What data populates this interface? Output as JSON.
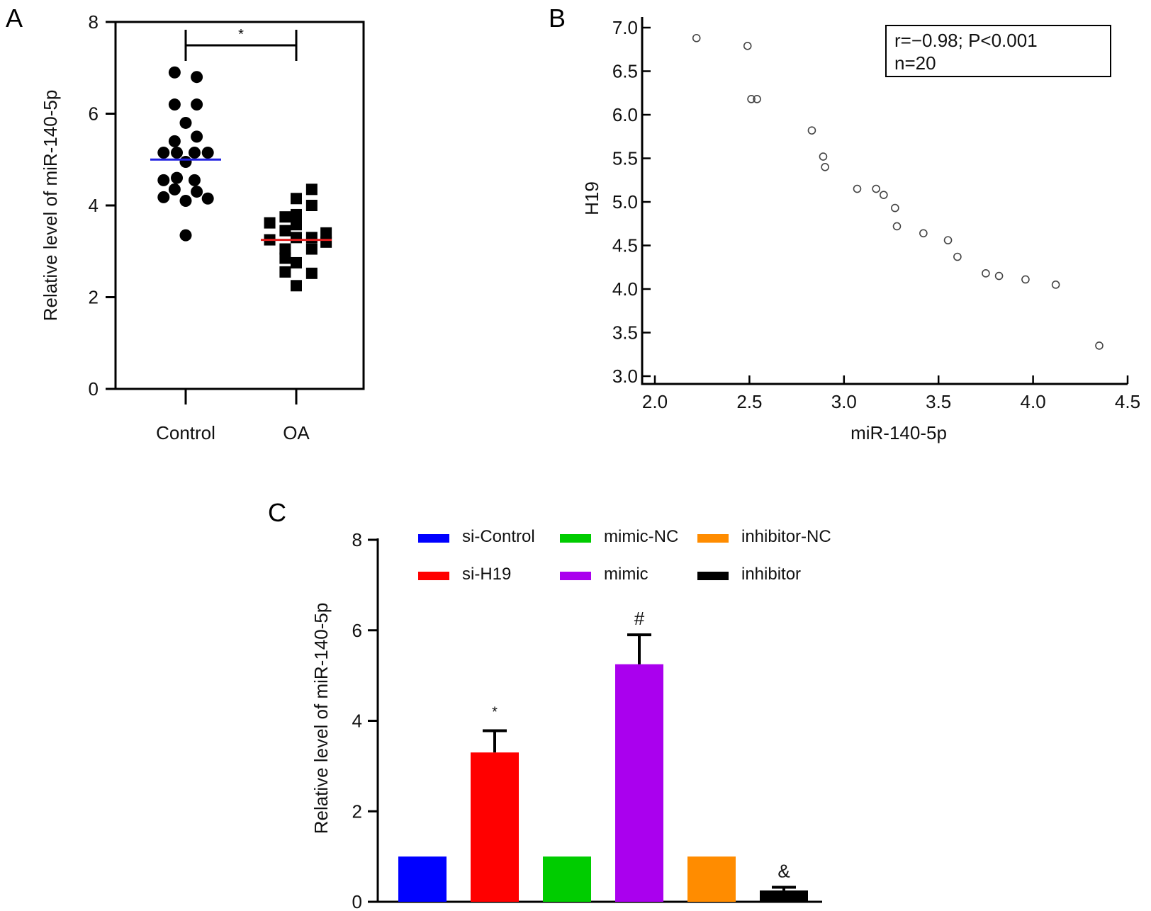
{
  "chart_data": [
    {
      "panel": "A",
      "type": "scatter",
      "ylabel": "Relative level of miR-140-5p",
      "ylim": [
        0,
        8
      ],
      "yticks": [
        0,
        2,
        4,
        6,
        8
      ],
      "categories": [
        "Control",
        "OA"
      ],
      "significance": "*",
      "colors": {
        "control_mean": "#2020e0",
        "oa_mean": "#e02020",
        "points": "#000000"
      },
      "series": [
        {
          "category": "Control",
          "marker": "circle",
          "mean": 5.0,
          "points": [
            {
              "x": 0.9,
              "y": 6.9
            },
            {
              "x": 1.1,
              "y": 6.8
            },
            {
              "x": 0.9,
              "y": 6.2
            },
            {
              "x": 1.1,
              "y": 6.2
            },
            {
              "x": 1.0,
              "y": 5.8
            },
            {
              "x": 0.9,
              "y": 5.4
            },
            {
              "x": 1.1,
              "y": 5.5
            },
            {
              "x": 0.8,
              "y": 5.15
            },
            {
              "x": 0.92,
              "y": 5.15
            },
            {
              "x": 1.08,
              "y": 5.15
            },
            {
              "x": 1.2,
              "y": 5.15
            },
            {
              "x": 1.0,
              "y": 4.95
            },
            {
              "x": 0.8,
              "y": 4.55
            },
            {
              "x": 0.92,
              "y": 4.6
            },
            {
              "x": 1.08,
              "y": 4.55
            },
            {
              "x": 0.9,
              "y": 4.35
            },
            {
              "x": 1.1,
              "y": 4.3
            },
            {
              "x": 0.8,
              "y": 4.18
            },
            {
              "x": 1.0,
              "y": 4.1
            },
            {
              "x": 1.2,
              "y": 4.15
            },
            {
              "x": 1.0,
              "y": 3.35
            }
          ]
        },
        {
          "category": "OA",
          "marker": "square",
          "mean": 3.25,
          "points": [
            {
              "x": 2.14,
              "y": 4.35
            },
            {
              "x": 2.0,
              "y": 4.15
            },
            {
              "x": 2.14,
              "y": 4.0
            },
            {
              "x": 1.9,
              "y": 3.75
            },
            {
              "x": 2.0,
              "y": 3.8
            },
            {
              "x": 1.76,
              "y": 3.62
            },
            {
              "x": 2.0,
              "y": 3.58
            },
            {
              "x": 1.9,
              "y": 3.45
            },
            {
              "x": 2.27,
              "y": 3.4
            },
            {
              "x": 1.76,
              "y": 3.25
            },
            {
              "x": 2.0,
              "y": 3.3
            },
            {
              "x": 2.14,
              "y": 3.3
            },
            {
              "x": 2.27,
              "y": 3.2
            },
            {
              "x": 1.9,
              "y": 3.05
            },
            {
              "x": 2.14,
              "y": 3.05
            },
            {
              "x": 1.9,
              "y": 2.85
            },
            {
              "x": 2.0,
              "y": 2.75
            },
            {
              "x": 1.9,
              "y": 2.55
            },
            {
              "x": 2.14,
              "y": 2.52
            },
            {
              "x": 2.0,
              "y": 2.25
            }
          ]
        }
      ]
    },
    {
      "panel": "B",
      "type": "scatter",
      "xlabel": "miR-140-5p",
      "ylabel": "H19",
      "xlim": [
        2.0,
        4.5
      ],
      "ylim": [
        3.0,
        7.0
      ],
      "xticks": [
        "2.0",
        "2.5",
        "3.0",
        "3.5",
        "4.0",
        "4.5"
      ],
      "yticks": [
        "3.0",
        "3.5",
        "4.0",
        "4.5",
        "5.0",
        "5.5",
        "6.0",
        "6.5",
        "7.0"
      ],
      "annotation": [
        "r=−0.98; P<0.001",
        "n=20"
      ],
      "points": [
        {
          "x": 2.22,
          "y": 6.88
        },
        {
          "x": 2.49,
          "y": 6.79
        },
        {
          "x": 2.51,
          "y": 6.18
        },
        {
          "x": 2.54,
          "y": 6.18
        },
        {
          "x": 2.83,
          "y": 5.82
        },
        {
          "x": 2.89,
          "y": 5.52
        },
        {
          "x": 2.9,
          "y": 5.4
        },
        {
          "x": 3.07,
          "y": 5.15
        },
        {
          "x": 3.17,
          "y": 5.15
        },
        {
          "x": 3.21,
          "y": 5.08
        },
        {
          "x": 3.27,
          "y": 4.93
        },
        {
          "x": 3.28,
          "y": 4.72
        },
        {
          "x": 3.42,
          "y": 4.64
        },
        {
          "x": 3.55,
          "y": 4.56
        },
        {
          "x": 3.6,
          "y": 4.37
        },
        {
          "x": 3.75,
          "y": 4.18
        },
        {
          "x": 3.82,
          "y": 4.15
        },
        {
          "x": 3.96,
          "y": 4.11
        },
        {
          "x": 4.12,
          "y": 4.05
        },
        {
          "x": 4.35,
          "y": 3.35
        }
      ]
    },
    {
      "panel": "C",
      "type": "bar",
      "ylabel": "Relative level of miR-140-5p",
      "ylim": [
        0,
        8
      ],
      "yticks": [
        0,
        2,
        4,
        6,
        8
      ],
      "categories": [
        "si-Control",
        "si-H19",
        "mimic-NC",
        "mimic",
        "inhibitor-NC",
        "inhibitor"
      ],
      "values": [
        1.0,
        3.3,
        1.0,
        5.25,
        1.0,
        0.25
      ],
      "errors": [
        0,
        0.48,
        0,
        0.65,
        0.02,
        0.07
      ],
      "significance": [
        "",
        "*",
        "",
        "#",
        "",
        "&"
      ],
      "colors": [
        "#0000ff",
        "#ff0000",
        "#00cc00",
        "#aa00ee",
        "#ff8c00",
        "#000000"
      ],
      "legend": [
        "si-Control",
        "mimic-NC",
        "inhibitor-NC",
        "si-H19",
        "mimic",
        "inhibitor"
      ]
    }
  ]
}
